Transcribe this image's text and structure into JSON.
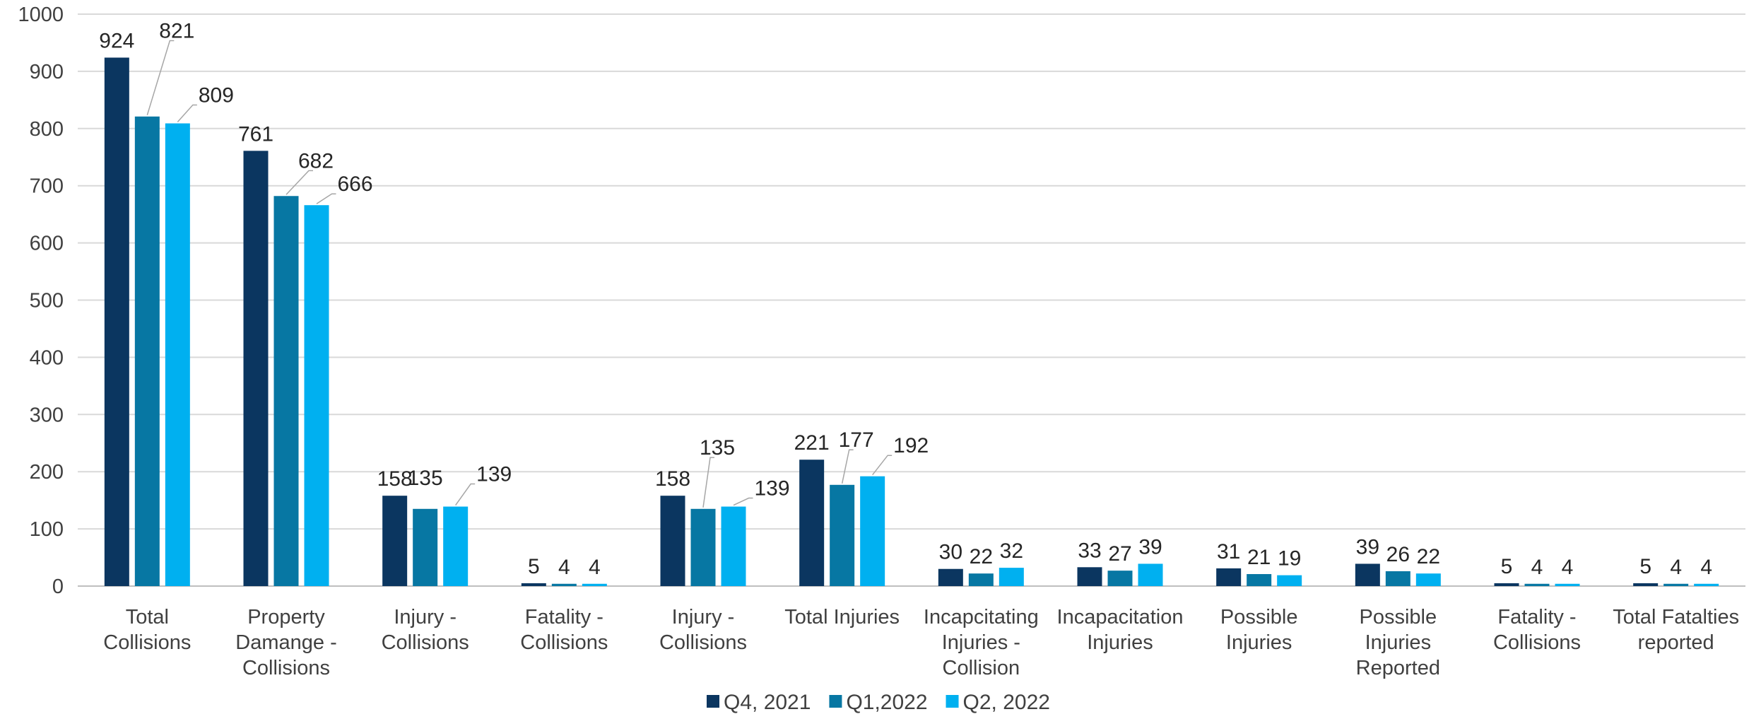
{
  "chart_data": {
    "type": "bar",
    "title": "",
    "xlabel": "",
    "ylabel": "",
    "ylim": [
      0,
      1000
    ],
    "yticks": [
      0,
      100,
      200,
      300,
      400,
      500,
      600,
      700,
      800,
      900,
      1000
    ],
    "grid": true,
    "legend_position": "bottom",
    "categories": [
      [
        "Total",
        "Collisions"
      ],
      [
        "Property",
        "Damange -",
        "Collisions"
      ],
      [
        "Injury -",
        "Collisions"
      ],
      [
        "Fatality -",
        "Collisions"
      ],
      [
        "Injury -",
        "Collisions"
      ],
      [
        "Total Injuries"
      ],
      [
        "Incapcitating",
        "Injuries -",
        "Collision"
      ],
      [
        "Incapacitation",
        "Injuries"
      ],
      [
        "Possible",
        "Injuries"
      ],
      [
        "Possible",
        "Injuries",
        "Reported"
      ],
      [
        "Fatality -",
        "Collisions"
      ],
      [
        "Total Fatalties",
        "reported"
      ]
    ],
    "series": [
      {
        "name": "Q4, 2021",
        "color": "#0b3660",
        "values": [
          924,
          761,
          158,
          5,
          158,
          221,
          30,
          33,
          31,
          39,
          5,
          5
        ]
      },
      {
        "name": "Q1,2022",
        "color": "#0777a3",
        "values": [
          821,
          682,
          135,
          4,
          135,
          177,
          22,
          27,
          21,
          26,
          4,
          4
        ]
      },
      {
        "name": "Q2, 2022",
        "color": "#00b0f0",
        "values": [
          809,
          666,
          139,
          4,
          139,
          192,
          32,
          39,
          19,
          22,
          4,
          4
        ]
      }
    ]
  }
}
